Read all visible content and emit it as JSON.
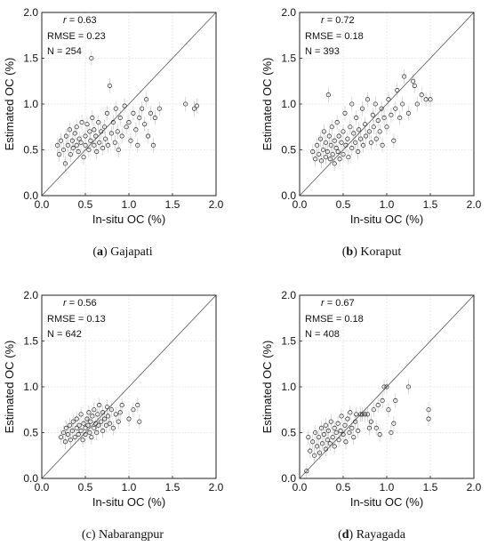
{
  "chart_data": [
    {
      "type": "scatter",
      "panel_letter": "a",
      "caption": "Gajapati",
      "xlabel": "In-situ OC (%)",
      "ylabel": "Estimated OC (%)",
      "xlim": [
        0,
        2
      ],
      "ylim": [
        0,
        2
      ],
      "xticks": [
        "0.0",
        "0.5",
        "1.0",
        "1.5",
        "2.0"
      ],
      "yticks": [
        "0.0",
        "0.5",
        "1.0",
        "1.5",
        "2.0"
      ],
      "grid": true,
      "reference_line": "1:1",
      "stats": [
        {
          "label": "r",
          "value": "= 0.63"
        },
        {
          "label": "RMSE",
          "value": "= 0.23"
        },
        {
          "label": "N",
          "value": "= 254"
        }
      ],
      "points": [
        [
          0.18,
          0.55
        ],
        [
          0.2,
          0.45
        ],
        [
          0.22,
          0.6
        ],
        [
          0.25,
          0.5
        ],
        [
          0.27,
          0.35
        ],
        [
          0.28,
          0.65
        ],
        [
          0.3,
          0.55
        ],
        [
          0.32,
          0.72
        ],
        [
          0.33,
          0.45
        ],
        [
          0.35,
          0.6
        ],
        [
          0.36,
          0.52
        ],
        [
          0.38,
          0.68
        ],
        [
          0.4,
          0.55
        ],
        [
          0.4,
          0.75
        ],
        [
          0.42,
          0.48
        ],
        [
          0.43,
          0.62
        ],
        [
          0.45,
          0.58
        ],
        [
          0.46,
          0.8
        ],
        [
          0.48,
          0.42
        ],
        [
          0.5,
          0.65
        ],
        [
          0.5,
          0.55
        ],
        [
          0.52,
          0.78
        ],
        [
          0.54,
          0.5
        ],
        [
          0.55,
          0.7
        ],
        [
          0.56,
          0.6
        ],
        [
          0.57,
          1.5
        ],
        [
          0.58,
          0.85
        ],
        [
          0.6,
          0.55
        ],
        [
          0.6,
          0.72
        ],
        [
          0.62,
          0.65
        ],
        [
          0.63,
          0.48
        ],
        [
          0.65,
          0.8
        ],
        [
          0.66,
          0.58
        ],
        [
          0.68,
          0.7
        ],
        [
          0.7,
          0.52
        ],
        [
          0.72,
          0.75
        ],
        [
          0.73,
          0.62
        ],
        [
          0.75,
          0.9
        ],
        [
          0.76,
          0.55
        ],
        [
          0.78,
          1.2
        ],
        [
          0.8,
          0.68
        ],
        [
          0.82,
          0.8
        ],
        [
          0.84,
          0.58
        ],
        [
          0.85,
          0.95
        ],
        [
          0.87,
          0.7
        ],
        [
          0.88,
          0.5
        ],
        [
          0.9,
          0.85
        ],
        [
          0.92,
          0.65
        ],
        [
          0.95,
          0.98
        ],
        [
          0.97,
          0.75
        ],
        [
          1.0,
          0.8
        ],
        [
          1.02,
          0.6
        ],
        [
          1.05,
          0.9
        ],
        [
          1.08,
          0.72
        ],
        [
          1.1,
          0.55
        ],
        [
          1.12,
          0.85
        ],
        [
          1.15,
          0.95
        ],
        [
          1.18,
          0.78
        ],
        [
          1.2,
          1.05
        ],
        [
          1.22,
          0.65
        ],
        [
          1.25,
          0.9
        ],
        [
          1.28,
          0.55
        ],
        [
          1.3,
          0.85
        ],
        [
          1.35,
          0.95
        ],
        [
          1.65,
          1.0
        ],
        [
          1.75,
          0.95
        ],
        [
          1.78,
          0.98
        ]
      ]
    },
    {
      "type": "scatter",
      "panel_letter": "b",
      "caption": "Koraput",
      "xlabel": "In-situ OC (%)",
      "ylabel": "Estimated OC (%)",
      "xlim": [
        0,
        2
      ],
      "ylim": [
        0,
        2
      ],
      "xticks": [
        "0.0",
        "0.5",
        "1.0",
        "1.5",
        "2.0"
      ],
      "yticks": [
        "0.0",
        "0.5",
        "1.0",
        "1.5",
        "2.0"
      ],
      "grid": true,
      "reference_line": "1:1",
      "stats": [
        {
          "label": "r",
          "value": "= 0.72"
        },
        {
          "label": "RMSE",
          "value": "= 0.18"
        },
        {
          "label": "N",
          "value": "= 393"
        }
      ],
      "points": [
        [
          0.15,
          0.48
        ],
        [
          0.18,
          0.4
        ],
        [
          0.2,
          0.55
        ],
        [
          0.22,
          0.45
        ],
        [
          0.24,
          0.62
        ],
        [
          0.25,
          0.38
        ],
        [
          0.27,
          0.5
        ],
        [
          0.28,
          0.7
        ],
        [
          0.3,
          0.42
        ],
        [
          0.3,
          0.58
        ],
        [
          0.32,
          0.48
        ],
        [
          0.33,
          1.1
        ],
        [
          0.34,
          0.65
        ],
        [
          0.35,
          0.4
        ],
        [
          0.36,
          0.55
        ],
        [
          0.37,
          0.75
        ],
        [
          0.38,
          0.45
        ],
        [
          0.4,
          0.6
        ],
        [
          0.4,
          0.35
        ],
        [
          0.42,
          0.52
        ],
        [
          0.43,
          0.8
        ],
        [
          0.44,
          0.48
        ],
        [
          0.45,
          0.65
        ],
        [
          0.46,
          0.4
        ],
        [
          0.48,
          0.58
        ],
        [
          0.5,
          0.7
        ],
        [
          0.5,
          0.45
        ],
        [
          0.52,
          0.9
        ],
        [
          0.53,
          0.55
        ],
        [
          0.55,
          0.62
        ],
        [
          0.56,
          0.42
        ],
        [
          0.58,
          0.75
        ],
        [
          0.6,
          0.52
        ],
        [
          0.6,
          1.0
        ],
        [
          0.62,
          0.68
        ],
        [
          0.64,
          0.58
        ],
        [
          0.65,
          0.85
        ],
        [
          0.67,
          0.48
        ],
        [
          0.68,
          0.72
        ],
        [
          0.7,
          0.62
        ],
        [
          0.72,
          0.95
        ],
        [
          0.73,
          0.55
        ],
        [
          0.75,
          0.78
        ],
        [
          0.76,
          0.65
        ],
        [
          0.78,
          1.05
        ],
        [
          0.8,
          0.7
        ],
        [
          0.82,
          0.58
        ],
        [
          0.84,
          0.88
        ],
        [
          0.85,
          0.75
        ],
        [
          0.87,
          1.0
        ],
        [
          0.88,
          0.62
        ],
        [
          0.9,
          0.82
        ],
        [
          0.92,
          0.7
        ],
        [
          0.94,
          0.95
        ],
        [
          0.95,
          0.55
        ],
        [
          0.97,
          0.85
        ],
        [
          1.0,
          0.75
        ],
        [
          1.02,
          1.05
        ],
        [
          1.05,
          0.88
        ],
        [
          1.08,
          0.6
        ],
        [
          1.1,
          0.95
        ],
        [
          1.12,
          1.15
        ],
        [
          1.15,
          0.85
        ],
        [
          1.18,
          1.0
        ],
        [
          1.2,
          1.3
        ],
        [
          1.25,
          0.9
        ],
        [
          1.3,
          1.25
        ],
        [
          1.32,
          1.2
        ],
        [
          1.35,
          1.0
        ],
        [
          1.4,
          1.1
        ],
        [
          1.45,
          1.05
        ],
        [
          1.5,
          1.05
        ]
      ]
    },
    {
      "type": "scatter",
      "panel_letter": "c",
      "caption": "Nabarangpur",
      "xlabel": "In-situ OC (%)",
      "ylabel": "Estimated OC (%)",
      "xlim": [
        0,
        2
      ],
      "ylim": [
        0,
        2
      ],
      "xticks": [
        "0.0",
        "0.5",
        "1.0",
        "1.5",
        "2.0"
      ],
      "yticks": [
        "0.0",
        "0.5",
        "1.0",
        "1.5",
        "2.0"
      ],
      "grid": true,
      "reference_line": "1:1",
      "stats": [
        {
          "label": "r",
          "value": "= 0.56"
        },
        {
          "label": "RMSE",
          "value": "= 0.13"
        },
        {
          "label": "N",
          "value": "= 642"
        }
      ],
      "points": [
        [
          0.22,
          0.45
        ],
        [
          0.25,
          0.5
        ],
        [
          0.27,
          0.4
        ],
        [
          0.28,
          0.55
        ],
        [
          0.3,
          0.48
        ],
        [
          0.32,
          0.58
        ],
        [
          0.33,
          0.42
        ],
        [
          0.35,
          0.52
        ],
        [
          0.36,
          0.62
        ],
        [
          0.38,
          0.45
        ],
        [
          0.4,
          0.55
        ],
        [
          0.4,
          0.65
        ],
        [
          0.42,
          0.48
        ],
        [
          0.43,
          0.58
        ],
        [
          0.45,
          0.52
        ],
        [
          0.45,
          0.7
        ],
        [
          0.47,
          0.42
        ],
        [
          0.48,
          0.6
        ],
        [
          0.5,
          0.55
        ],
        [
          0.5,
          0.48
        ],
        [
          0.52,
          0.65
        ],
        [
          0.53,
          0.58
        ],
        [
          0.54,
          0.72
        ],
        [
          0.55,
          0.5
        ],
        [
          0.56,
          0.62
        ],
        [
          0.57,
          0.45
        ],
        [
          0.58,
          0.68
        ],
        [
          0.6,
          0.55
        ],
        [
          0.6,
          0.75
        ],
        [
          0.62,
          0.6
        ],
        [
          0.63,
          0.5
        ],
        [
          0.64,
          0.7
        ],
        [
          0.65,
          0.58
        ],
        [
          0.66,
          0.8
        ],
        [
          0.68,
          0.62
        ],
        [
          0.7,
          0.52
        ],
        [
          0.7,
          0.72
        ],
        [
          0.72,
          0.65
        ],
        [
          0.74,
          0.58
        ],
        [
          0.75,
          0.78
        ],
        [
          0.76,
          0.68
        ],
        [
          0.78,
          0.6
        ],
        [
          0.8,
          0.75
        ],
        [
          0.82,
          0.55
        ],
        [
          0.85,
          0.7
        ],
        [
          0.88,
          0.62
        ],
        [
          0.9,
          0.72
        ],
        [
          0.92,
          0.8
        ],
        [
          1.0,
          0.65
        ],
        [
          1.05,
          0.75
        ],
        [
          1.1,
          0.8
        ],
        [
          1.12,
          0.62
        ]
      ]
    },
    {
      "type": "scatter",
      "panel_letter": "d",
      "caption": "Rayagada",
      "xlabel": "In-situ OC (%)",
      "ylabel": "Estimated OC (%)",
      "xlim": [
        0,
        2
      ],
      "ylim": [
        0,
        2
      ],
      "xticks": [
        "0.0",
        "0.5",
        "1.0",
        "1.5",
        "2.0"
      ],
      "yticks": [
        "0.0",
        "0.5",
        "1.0",
        "1.5",
        "2.0"
      ],
      "grid": true,
      "reference_line": "1:1",
      "stats": [
        {
          "label": "r",
          "value": "= 0.67"
        },
        {
          "label": "RMSE",
          "value": "= 0.18"
        },
        {
          "label": "N",
          "value": "= 408"
        }
      ],
      "points": [
        [
          0.08,
          0.08
        ],
        [
          0.1,
          0.45
        ],
        [
          0.12,
          0.3
        ],
        [
          0.15,
          0.4
        ],
        [
          0.17,
          0.25
        ],
        [
          0.18,
          0.5
        ],
        [
          0.2,
          0.35
        ],
        [
          0.22,
          0.45
        ],
        [
          0.23,
          0.28
        ],
        [
          0.25,
          0.55
        ],
        [
          0.26,
          0.38
        ],
        [
          0.28,
          0.48
        ],
        [
          0.3,
          0.32
        ],
        [
          0.3,
          0.58
        ],
        [
          0.32,
          0.42
        ],
        [
          0.33,
          0.52
        ],
        [
          0.35,
          0.38
        ],
        [
          0.36,
          0.62
        ],
        [
          0.38,
          0.45
        ],
        [
          0.4,
          0.55
        ],
        [
          0.4,
          0.35
        ],
        [
          0.42,
          0.5
        ],
        [
          0.44,
          0.6
        ],
        [
          0.45,
          0.42
        ],
        [
          0.47,
          0.52
        ],
        [
          0.48,
          0.68
        ],
        [
          0.5,
          0.48
        ],
        [
          0.52,
          0.58
        ],
        [
          0.53,
          0.4
        ],
        [
          0.55,
          0.65
        ],
        [
          0.57,
          0.5
        ],
        [
          0.58,
          0.72
        ],
        [
          0.6,
          0.55
        ],
        [
          0.62,
          0.45
        ],
        [
          0.64,
          0.62
        ],
        [
          0.65,
          0.7
        ],
        [
          0.67,
          0.52
        ],
        [
          0.7,
          0.7
        ],
        [
          0.72,
          0.7
        ],
        [
          0.75,
          0.7
        ],
        [
          0.78,
          0.7
        ],
        [
          0.8,
          0.55
        ],
        [
          0.82,
          0.62
        ],
        [
          0.85,
          0.75
        ],
        [
          0.88,
          0.55
        ],
        [
          0.9,
          0.8
        ],
        [
          0.92,
          0.48
        ],
        [
          0.95,
          0.85
        ],
        [
          0.97,
          1.0
        ],
        [
          1.0,
          1.0
        ],
        [
          1.02,
          0.75
        ],
        [
          1.05,
          0.5
        ],
        [
          1.08,
          0.6
        ],
        [
          1.1,
          0.85
        ],
        [
          1.25,
          1.0
        ],
        [
          1.48,
          0.75
        ],
        [
          1.48,
          0.65
        ]
      ]
    }
  ]
}
